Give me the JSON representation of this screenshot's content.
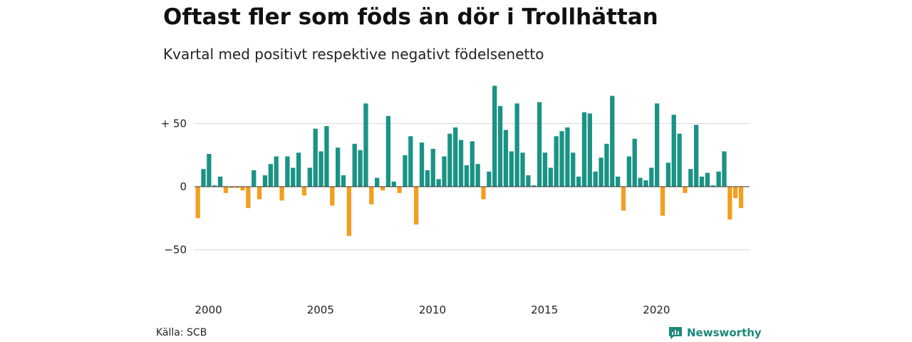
{
  "header": {
    "title": "Oftast fler som föds än dör i Trollhättan",
    "subtitle": "Kvartal med positivt respektive negativt födelsenetto"
  },
  "footer": {
    "source": "Källa: SCB",
    "brand": "Newsworthy"
  },
  "colors": {
    "positive": "#1a9384",
    "negative": "#f29f1f",
    "grid": "#d9d9d9",
    "zero_line": "#333333",
    "brand": "#1a8a7a"
  },
  "chart_data": {
    "type": "bar",
    "title": "Oftast fler som föds än dör i Trollhättan",
    "subtitle": "Kvartal med positivt respektive negativt födelsenetto",
    "x_start_year": 2000,
    "periods_per_year": 4,
    "x_tick_labels": [
      "2000",
      "2005",
      "2010",
      "2015",
      "2020"
    ],
    "y_ticks": [
      50,
      0,
      -50
    ],
    "y_tick_labels": [
      "+ 50",
      "0",
      "−50"
    ],
    "ylim": [
      -75,
      80
    ],
    "grid": true,
    "values": [
      -25,
      14,
      26,
      1,
      8,
      -5,
      -1,
      -1,
      -3,
      -17,
      13,
      -10,
      9,
      18,
      24,
      -11,
      24,
      15,
      27,
      -7,
      15,
      46,
      28,
      48,
      -15,
      31,
      9,
      -39,
      34,
      29,
      66,
      -14,
      7,
      -3,
      56,
      4,
      -5,
      25,
      40,
      -30,
      35,
      13,
      30,
      6,
      24,
      42,
      47,
      37,
      17,
      36,
      18,
      -10,
      12,
      80,
      64,
      45,
      28,
      66,
      27,
      9,
      1,
      67,
      27,
      15,
      40,
      44,
      47,
      27,
      8,
      59,
      58,
      12,
      23,
      34,
      72,
      8,
      -19,
      24,
      38,
      7,
      5,
      15,
      66,
      -23,
      19,
      57,
      42,
      -5,
      14,
      49,
      8,
      11,
      1,
      12,
      28,
      -26,
      -9,
      -17
    ]
  }
}
